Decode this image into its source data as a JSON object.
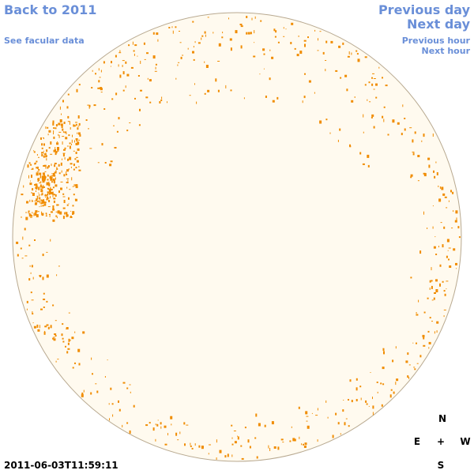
{
  "nav": {
    "back_label": "Back to 2011",
    "facular_label": "See facular data",
    "prev_day_label": "Previous day",
    "next_day_label": "Next day",
    "prev_hour_label": "Previous hour",
    "next_hour_label": "Next hour"
  },
  "compass": {
    "north": "N",
    "east": "E",
    "center": "+",
    "west": "W",
    "south": "S"
  },
  "timestamp": "2011-06-03T11:59:11",
  "colors": {
    "link": "#6a8fd8",
    "disk_fill": "#fffaef",
    "disk_stroke": "#b8a990",
    "facula": "#f08c00",
    "text": "#000000"
  }
}
